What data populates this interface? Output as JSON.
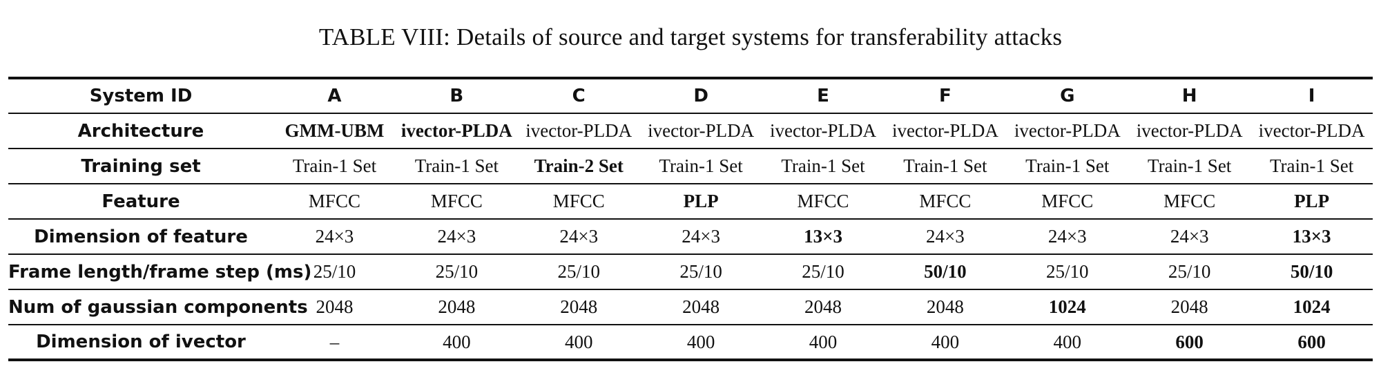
{
  "caption": "TABLE VIII: Details of source and target systems for transferability attacks",
  "header": {
    "label": "System ID",
    "systems": [
      "A",
      "B",
      "C",
      "D",
      "E",
      "F",
      "G",
      "H",
      "I"
    ]
  },
  "rows": [
    {
      "label": "Architecture",
      "cells": [
        "GMM-UBM",
        "ivector-PLDA",
        "ivector-PLDA",
        "ivector-PLDA",
        "ivector-PLDA",
        "ivector-PLDA",
        "ivector-PLDA",
        "ivector-PLDA",
        "ivector-PLDA"
      ],
      "bold": [
        true,
        true,
        false,
        false,
        false,
        false,
        false,
        false,
        false
      ]
    },
    {
      "label": "Training set",
      "cells": [
        "Train-1 Set",
        "Train-1 Set",
        "Train-2 Set",
        "Train-1 Set",
        "Train-1 Set",
        "Train-1 Set",
        "Train-1 Set",
        "Train-1 Set",
        "Train-1 Set"
      ],
      "bold": [
        false,
        false,
        true,
        false,
        false,
        false,
        false,
        false,
        false
      ]
    },
    {
      "label": "Feature",
      "cells": [
        "MFCC",
        "MFCC",
        "MFCC",
        "PLP",
        "MFCC",
        "MFCC",
        "MFCC",
        "MFCC",
        "PLP"
      ],
      "bold": [
        false,
        false,
        false,
        true,
        false,
        false,
        false,
        false,
        true
      ]
    },
    {
      "label": "Dimension of feature",
      "cells": [
        "24×3",
        "24×3",
        "24×3",
        "24×3",
        "13×3",
        "24×3",
        "24×3",
        "24×3",
        "13×3"
      ],
      "bold": [
        false,
        false,
        false,
        false,
        true,
        false,
        false,
        false,
        true
      ]
    },
    {
      "label": "Frame length/frame step (ms)",
      "cells": [
        "25/10",
        "25/10",
        "25/10",
        "25/10",
        "25/10",
        "50/10",
        "25/10",
        "25/10",
        "50/10"
      ],
      "bold": [
        false,
        false,
        false,
        false,
        false,
        true,
        false,
        false,
        true
      ]
    },
    {
      "label": "Num of gaussian components",
      "cells": [
        "2048",
        "2048",
        "2048",
        "2048",
        "2048",
        "2048",
        "1024",
        "2048",
        "1024"
      ],
      "bold": [
        false,
        false,
        false,
        false,
        false,
        false,
        true,
        false,
        true
      ]
    },
    {
      "label": "Dimension of ivector",
      "cells": [
        "–",
        "400",
        "400",
        "400",
        "400",
        "400",
        "400",
        "600",
        "600"
      ],
      "bold": [
        false,
        false,
        false,
        false,
        false,
        false,
        false,
        true,
        true
      ]
    }
  ]
}
